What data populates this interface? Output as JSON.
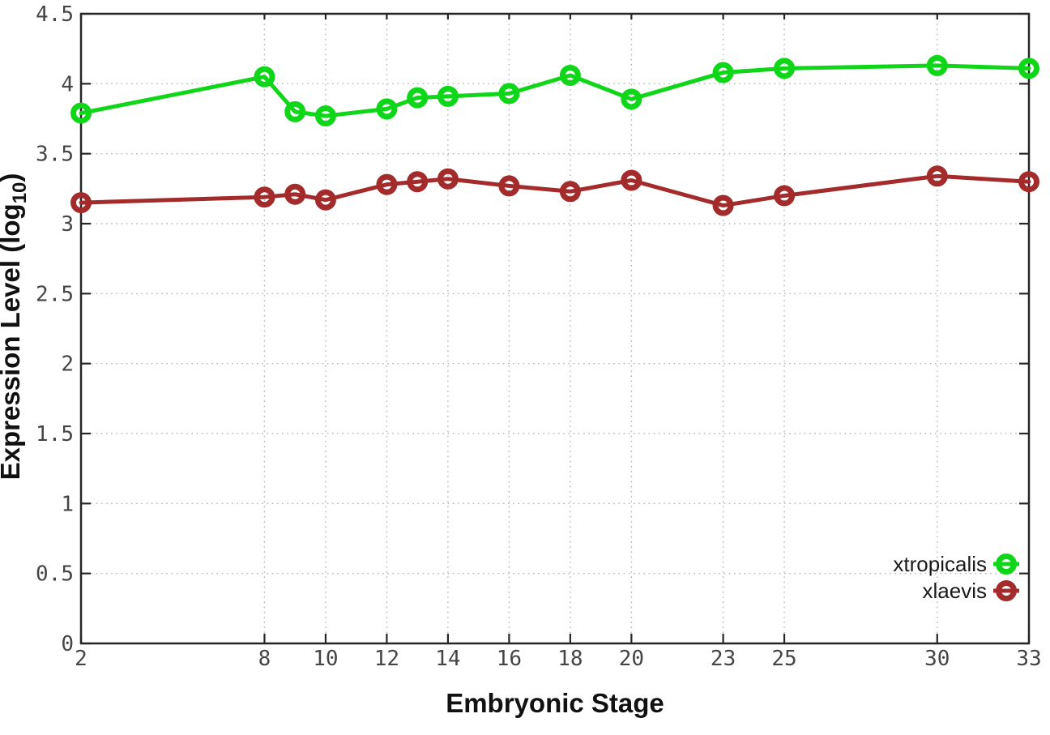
{
  "chart_data": {
    "type": "line",
    "title": "",
    "xlabel": "Embryonic Stage",
    "ylabel": "Expression Level (log10)",
    "ylabel_parts": {
      "pre": "Expression Level (log",
      "sub": "10",
      "post": ")"
    },
    "x": [
      2,
      8,
      9,
      10,
      12,
      13,
      14,
      16,
      18,
      20,
      23,
      25,
      30,
      33
    ],
    "series": [
      {
        "name": "xtropicalis",
        "color": "#10d61a",
        "values": [
          3.79,
          4.05,
          3.8,
          3.77,
          3.82,
          3.9,
          3.91,
          3.93,
          4.06,
          3.89,
          4.08,
          4.11,
          4.13,
          4.11
        ]
      },
      {
        "name": "xlaevis",
        "color": "#a32b2b",
        "values": [
          3.15,
          3.19,
          3.21,
          3.17,
          3.28,
          3.3,
          3.32,
          3.27,
          3.23,
          3.31,
          3.13,
          3.2,
          3.34,
          3.3
        ]
      }
    ],
    "xlim": [
      2,
      33
    ],
    "ylim": [
      0,
      4.5
    ],
    "xticks": {
      "values": [
        2,
        8,
        10,
        12,
        14,
        16,
        18,
        20,
        23,
        25,
        30,
        33
      ],
      "labels": [
        "2",
        "8",
        "10",
        "12",
        "14",
        "16",
        "18",
        "20",
        "23",
        "25",
        "30",
        "33"
      ]
    },
    "yticks": {
      "values": [
        0,
        0.5,
        1,
        1.5,
        2,
        2.5,
        3,
        3.5,
        4,
        4.5
      ],
      "labels": [
        "0",
        "0.5",
        "1",
        "1.5",
        "2",
        "2.5",
        "3",
        "3.5",
        "4",
        "4.5"
      ]
    },
    "grid": true,
    "legend_position": "inside-bottom-right",
    "marker": "open-circle",
    "colors": {
      "border": "#262626",
      "grid": "#b5b5b5",
      "tick_text": "#454545",
      "label_text": "#111111"
    }
  }
}
